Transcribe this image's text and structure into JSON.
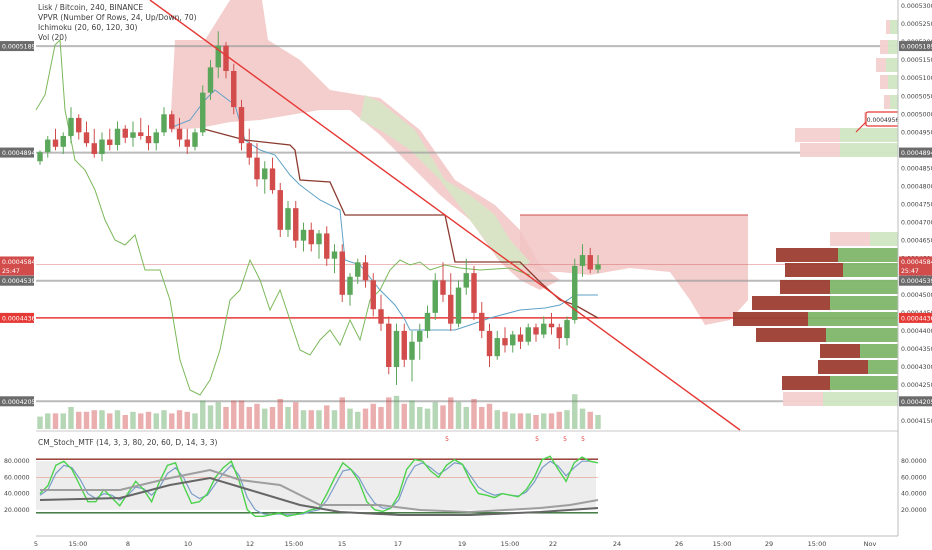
{
  "chart_header": {
    "title": "Lisk / Bitcoin, 240, BINANCE",
    "vpvr": "VPVR (Number Of Rows, 24, Up/Down, 70)",
    "ichimoku": "Ichimoku (20, 60, 120, 30)",
    "vol": "Vol (20)"
  },
  "indicator_label": "CM_Stoch_MTF (14, 3, 3, 80, 20, 60, D, 14, 3, 3)",
  "colors": {
    "up": "#5aa65a",
    "down": "#d24c4c",
    "cloud_bear": "#f2c4c4",
    "cloud_bull": "#d6e7c7",
    "trendline": "#e53935",
    "tenkan": "#5fa2c7",
    "kijun": "#8b3a2e",
    "chikou": "#7cb85a"
  },
  "price_axis": {
    "ticks": [
      "0.0005300",
      "0.0005250",
      "0.0005200",
      "0.0005150",
      "0.0005100",
      "0.0005050",
      "0.0005000",
      "0.0004950",
      "0.0004900",
      "0.0004850",
      "0.0004800",
      "0.0004750",
      "0.0004700",
      "0.0004650",
      "0.0004600",
      "0.0004550",
      "0.0004500",
      "0.0004450",
      "0.0004400",
      "0.0004350",
      "0.0004300",
      "0.0004250",
      "0.0004200",
      "0.0004150"
    ],
    "left_labels": [
      "0.0005189",
      "0.0004894",
      "0.0004584",
      "25:47",
      "0.0004539",
      "0.0004436",
      "0.0004205"
    ],
    "right_labels": [
      "0.0005189",
      "0.0004894",
      "0.0004584",
      "25:47",
      "0.0004539",
      "0.0004436",
      "0.0004205"
    ],
    "callout": "0.0004956"
  },
  "x_axis": {
    "ticks": [
      "5",
      "15:00",
      "8",
      "10",
      "12",
      "15:00",
      "15",
      "17",
      "19",
      "15:00",
      "22",
      "24",
      "26",
      "15:00",
      "29",
      "15:00",
      "Nov"
    ]
  },
  "stoch_axis": {
    "ticks": [
      "80.0000",
      "60.0000",
      "40.0000",
      "20.0000"
    ],
    "markers": [
      "5",
      "5",
      "5",
      "5"
    ]
  },
  "chart_data": {
    "type": "candlestick",
    "symbol": "Lisk / Bitcoin",
    "interval": "240",
    "exchange": "BINANCE",
    "ylim": [
      0.000414,
      0.000532
    ],
    "horizontal_levels": [
      0.0005189,
      0.0004894,
      0.0004539,
      0.0004436,
      0.0004205
    ],
    "last_price": 0.0004584,
    "candles": [
      [
        0.000487,
        0.00049,
        0.000486,
        0.0004895
      ],
      [
        0.0004895,
        0.000494,
        0.000488,
        0.000493
      ],
      [
        0.000493,
        0.000496,
        0.00049,
        0.000491
      ],
      [
        0.000491,
        0.000495,
        0.000489,
        0.000494
      ],
      [
        0.000494,
        0.000502,
        0.000492,
        0.000499
      ],
      [
        0.000499,
        0.0005,
        0.000493,
        0.000495
      ],
      [
        0.000495,
        0.000498,
        0.000491,
        0.000492
      ],
      [
        0.000492,
        0.000496,
        0.000488,
        0.000489
      ],
      [
        0.000489,
        0.000495,
        0.000487,
        0.000493
      ],
      [
        0.000493,
        0.000496,
        0.00049,
        0.0004915
      ],
      [
        0.0004915,
        0.000498,
        0.00049,
        0.000496
      ],
      [
        0.000496,
        0.000497,
        0.000492,
        0.0004935
      ],
      [
        0.0004935,
        0.000498,
        0.000491,
        0.000495
      ],
      [
        0.000495,
        0.000499,
        0.000493,
        0.000494
      ],
      [
        0.000494,
        0.000497,
        0.00049,
        0.000492
      ],
      [
        0.000492,
        0.000496,
        0.00049,
        0.000495
      ],
      [
        0.000495,
        0.000502,
        0.000494,
        0.0005
      ],
      [
        0.0005,
        0.000501,
        0.000495,
        0.000496
      ],
      [
        0.000496,
        0.000499,
        0.000491,
        0.000493
      ],
      [
        0.000493,
        0.000496,
        0.000489,
        0.000491
      ],
      [
        0.000491,
        0.000496,
        0.00049,
        0.000495
      ],
      [
        0.000495,
        0.000508,
        0.000494,
        0.000506
      ],
      [
        0.000506,
        0.000515,
        0.000504,
        0.000513
      ],
      [
        0.000513,
        0.000523,
        0.00051,
        0.000519
      ],
      [
        0.000519,
        0.00052,
        0.00051,
        0.000512
      ],
      [
        0.000512,
        0.000514,
        0.0005,
        0.000502
      ],
      [
        0.000502,
        0.000504,
        0.00049,
        0.000492
      ],
      [
        0.000492,
        0.000496,
        0.000486,
        0.000488
      ],
      [
        0.000488,
        0.000492,
        0.00048,
        0.000482
      ],
      [
        0.000482,
        0.000487,
        0.000478,
        0.000485
      ],
      [
        0.000485,
        0.000488,
        0.000478,
        0.000479
      ],
      [
        0.000479,
        0.000481,
        0.000466,
        0.000468
      ],
      [
        0.000468,
        0.000476,
        0.000466,
        0.000474
      ],
      [
        0.000474,
        0.000476,
        0.000463,
        0.000465
      ],
      [
        0.000465,
        0.00047,
        0.000462,
        0.000468
      ],
      [
        0.000468,
        0.00047,
        0.000462,
        0.000464
      ],
      [
        0.000464,
        0.000468,
        0.00046,
        0.000467
      ],
      [
        0.000467,
        0.000469,
        0.000458,
        0.00046
      ],
      [
        0.00046,
        0.000464,
        0.000456,
        0.000462
      ],
      [
        0.000462,
        0.000464,
        0.000448,
        0.00045
      ],
      [
        0.00045,
        0.000456,
        0.000447,
        0.000455
      ],
      [
        0.000455,
        0.00046,
        0.000453,
        0.000459
      ],
      [
        0.000459,
        0.000461,
        0.000452,
        0.000454
      ],
      [
        0.000454,
        0.000456,
        0.000444,
        0.000446
      ],
      [
        0.000446,
        0.00045,
        0.00044,
        0.000442
      ],
      [
        0.000442,
        0.000444,
        0.000428,
        0.00043
      ],
      [
        0.00043,
        0.000442,
        0.000425,
        0.00044
      ],
      [
        0.00044,
        0.000442,
        0.00043,
        0.000432
      ],
      [
        0.000432,
        0.00044,
        0.000426,
        0.000437
      ],
      [
        0.000437,
        0.000442,
        0.000432,
        0.00044
      ],
      [
        0.00044,
        0.000447,
        0.000438,
        0.000445
      ],
      [
        0.000445,
        0.000456,
        0.000443,
        0.000454
      ],
      [
        0.000454,
        0.000459,
        0.000448,
        0.00045
      ],
      [
        0.00045,
        0.000456,
        0.00044,
        0.000442
      ],
      [
        0.000442,
        0.000454,
        0.000441,
        0.000452
      ],
      [
        0.000452,
        0.00046,
        0.00045,
        0.000456
      ],
      [
        0.000456,
        0.000458,
        0.000443,
        0.000445
      ],
      [
        0.000445,
        0.000448,
        0.000438,
        0.00044
      ],
      [
        0.00044,
        0.000442,
        0.00043,
        0.000433
      ],
      [
        0.000433,
        0.00044,
        0.000432,
        0.000438
      ],
      [
        0.000438,
        0.000441,
        0.000434,
        0.000436
      ],
      [
        0.000436,
        0.00044,
        0.000434,
        0.000439
      ],
      [
        0.000439,
        0.000441,
        0.000435,
        0.000437
      ],
      [
        0.000437,
        0.000442,
        0.000436,
        0.000441
      ],
      [
        0.000441,
        0.000442,
        0.000437,
        0.000439
      ],
      [
        0.000439,
        0.000444,
        0.000438,
        0.000442
      ],
      [
        0.000442,
        0.000445,
        0.000439,
        0.000441
      ],
      [
        0.000441,
        0.000442,
        0.000435,
        0.000438
      ],
      [
        0.000438,
        0.000444,
        0.000436,
        0.000443
      ],
      [
        0.000443,
        0.00046,
        0.000442,
        0.000458
      ],
      [
        0.000458,
        0.000464,
        0.000455,
        0.000461
      ],
      [
        0.000461,
        0.000463,
        0.000456,
        0.000457
      ],
      [
        0.000457,
        0.000461,
        0.000456,
        0.0004584
      ]
    ]
  }
}
